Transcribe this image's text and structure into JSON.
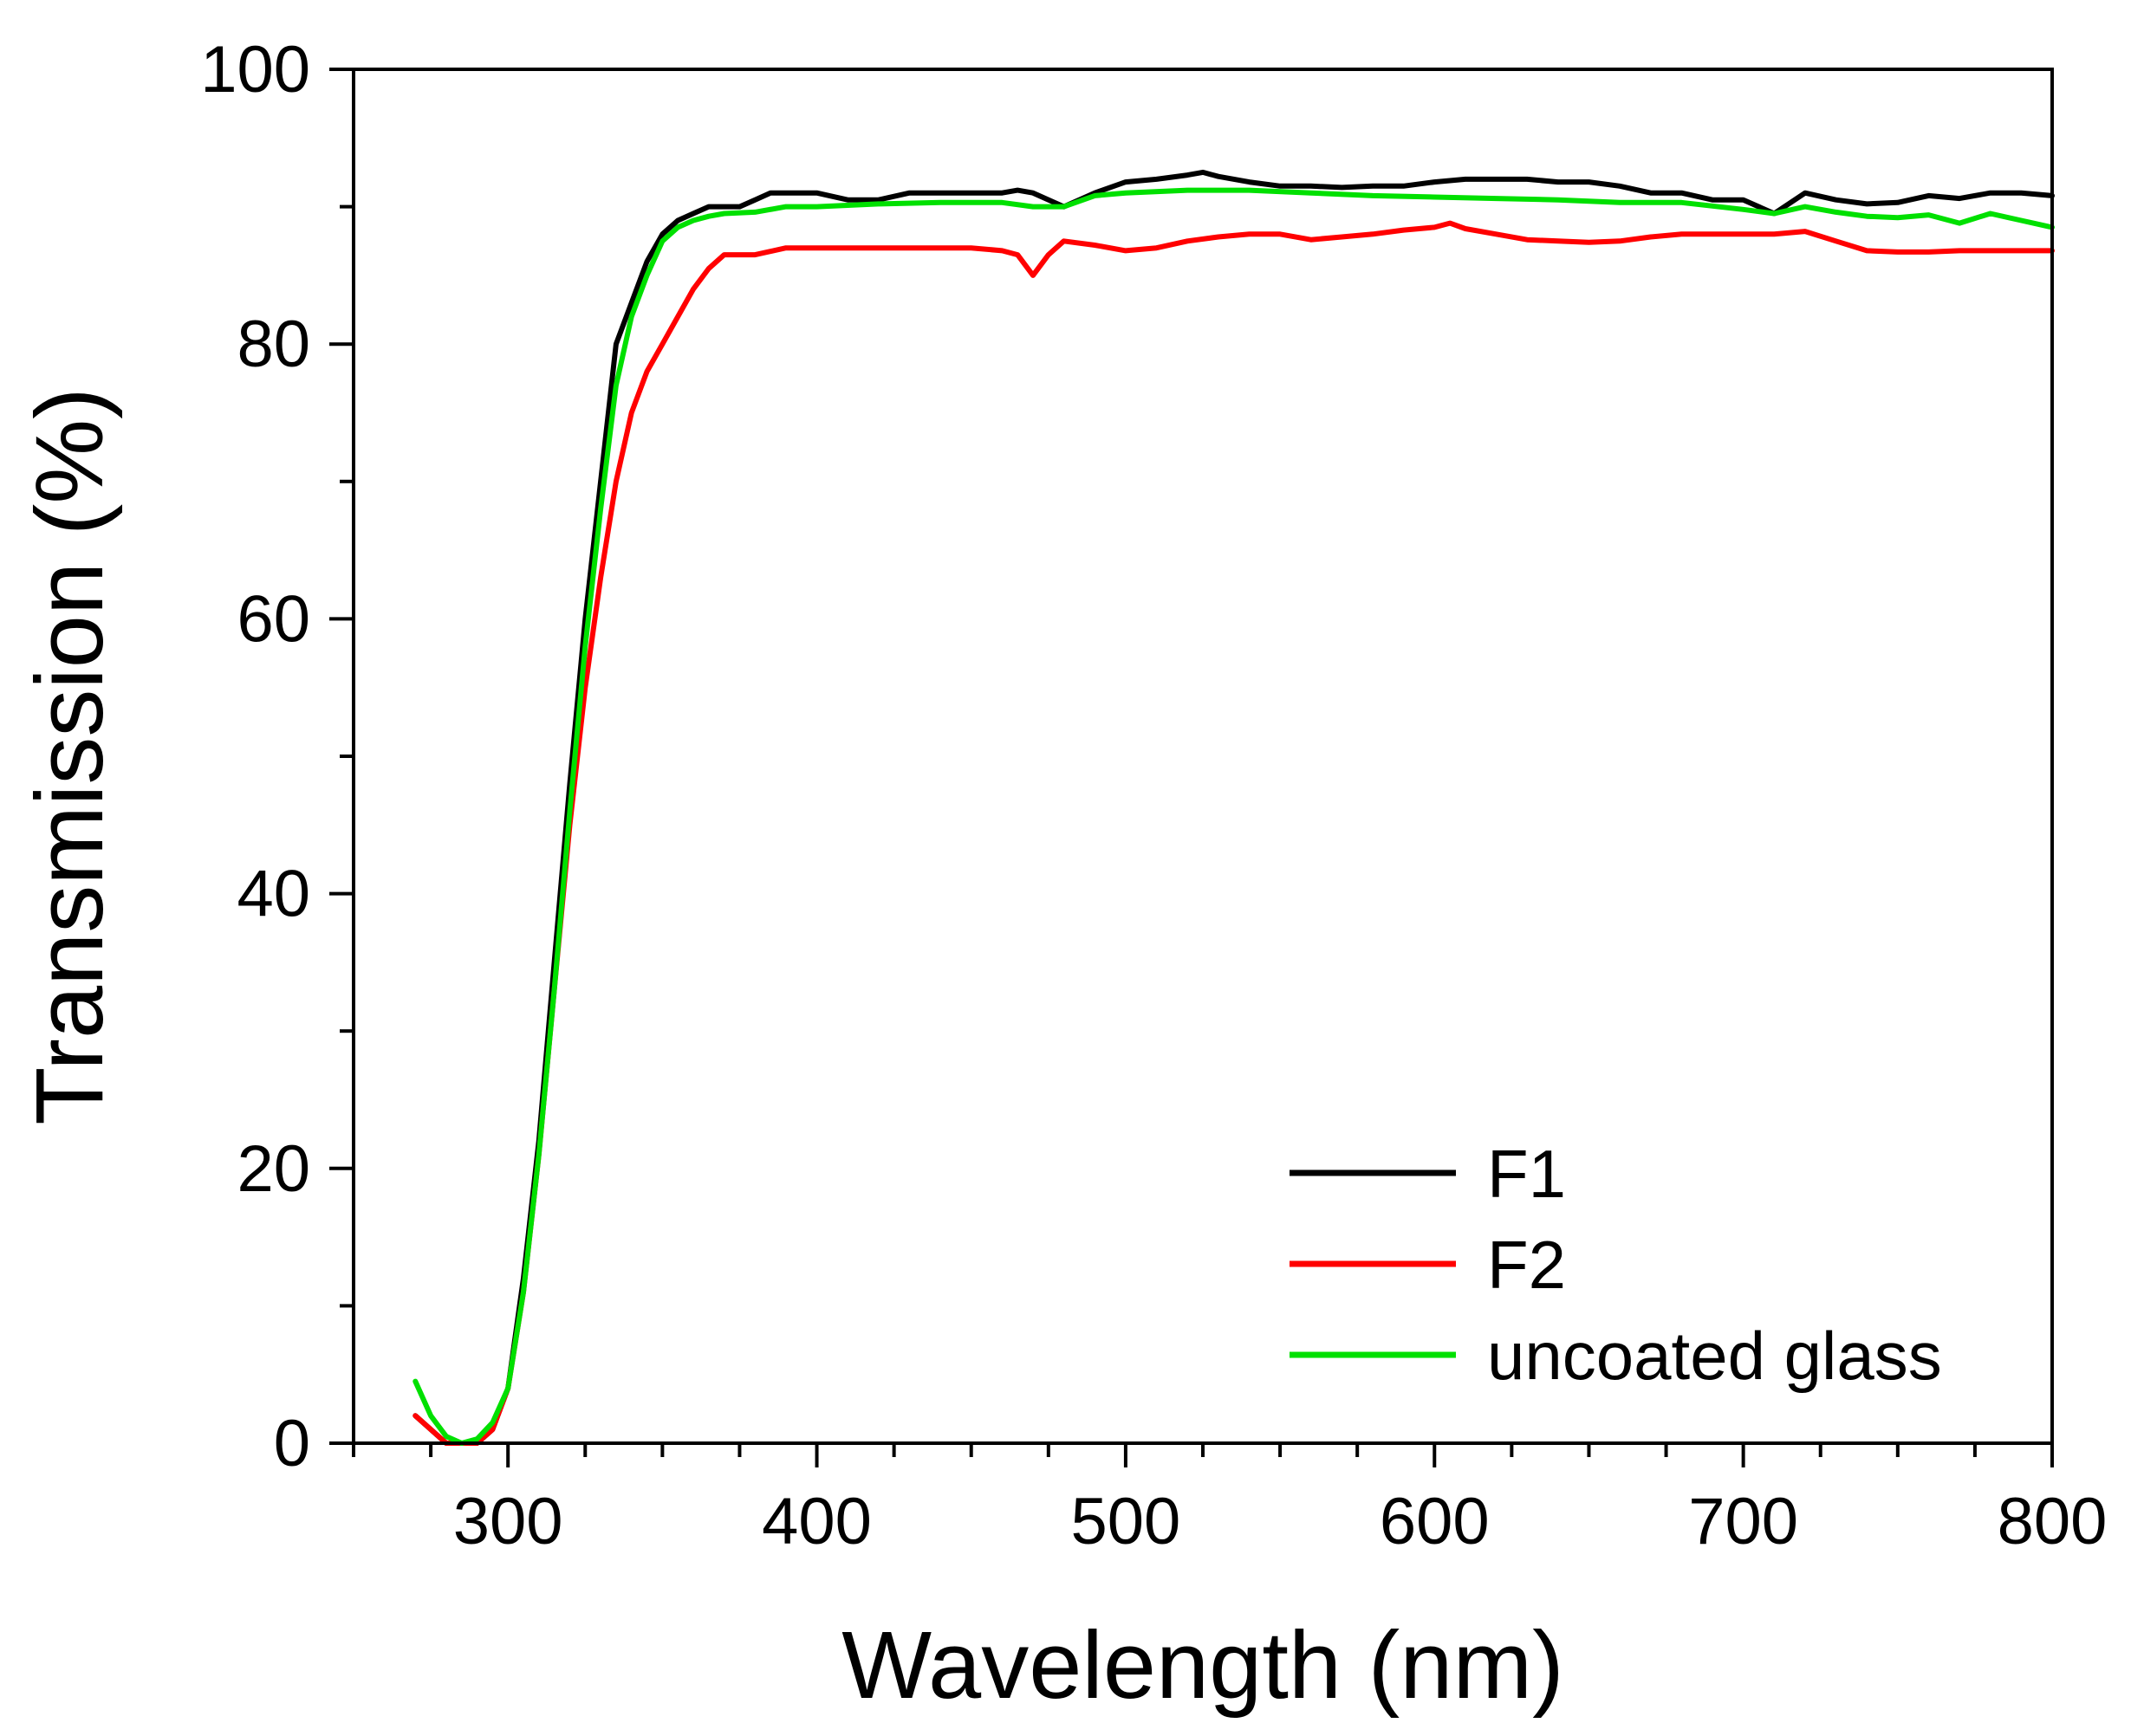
{
  "chart_data": {
    "type": "line",
    "title": "",
    "xlabel": "Wavelength (nm)",
    "ylabel": "Transmission (%)",
    "xlim": [
      250,
      800
    ],
    "ylim": [
      0,
      100
    ],
    "xticks": [
      300,
      400,
      500,
      600,
      700,
      800
    ],
    "yticks": [
      0,
      20,
      40,
      60,
      80,
      100
    ],
    "grid": false,
    "legend_position": "bottom-right",
    "series": [
      {
        "name": "F1",
        "color": "#000000",
        "x": [
          270,
          275,
          280,
          285,
          290,
          295,
          300,
          305,
          310,
          315,
          320,
          325,
          330,
          335,
          340,
          345,
          350,
          355,
          360,
          365,
          370,
          375,
          380,
          385,
          390,
          400,
          410,
          420,
          430,
          440,
          450,
          460,
          465,
          470,
          480,
          490,
          500,
          510,
          520,
          525,
          530,
          540,
          550,
          560,
          570,
          580,
          590,
          600,
          610,
          620,
          630,
          640,
          650,
          660,
          670,
          680,
          690,
          700,
          710,
          720,
          730,
          740,
          750,
          760,
          770,
          780,
          790,
          800
        ],
        "y": [
          2,
          1,
          0,
          0,
          0,
          1,
          4,
          12,
          22,
          35,
          48,
          60,
          70,
          80,
          83,
          86,
          88,
          89,
          89.5,
          90,
          90,
          90,
          90.5,
          91,
          91,
          91,
          90.5,
          90.5,
          91,
          91,
          91,
          91,
          91.2,
          91,
          90,
          91,
          91.8,
          92,
          92.3,
          92.5,
          92.2,
          91.8,
          91.5,
          91.5,
          91.4,
          91.5,
          91.5,
          91.8,
          92,
          92,
          92,
          91.8,
          91.8,
          91.5,
          91,
          91,
          90.5,
          90.5,
          89.5,
          91,
          90.5,
          90.2,
          90.3,
          90.8,
          90.6,
          91,
          91,
          90.8
        ]
      },
      {
        "name": "F2",
        "color": "#ff0000",
        "x": [
          270,
          275,
          280,
          285,
          290,
          295,
          300,
          305,
          310,
          315,
          320,
          325,
          330,
          335,
          340,
          345,
          350,
          355,
          360,
          365,
          370,
          380,
          390,
          400,
          410,
          420,
          430,
          440,
          450,
          460,
          465,
          470,
          475,
          480,
          490,
          500,
          510,
          520,
          530,
          540,
          550,
          560,
          570,
          580,
          590,
          600,
          605,
          610,
          620,
          630,
          640,
          650,
          660,
          670,
          680,
          690,
          700,
          710,
          720,
          730,
          740,
          750,
          760,
          770,
          780,
          790,
          800
        ],
        "y": [
          2,
          1,
          0,
          0,
          0,
          1,
          4,
          11,
          21,
          33,
          45,
          55,
          63,
          70,
          75,
          78,
          80,
          82,
          84,
          85.5,
          86.5,
          86.5,
          87,
          87,
          87,
          87,
          87,
          87,
          87,
          86.8,
          86.5,
          85,
          86.5,
          87.5,
          87.2,
          86.8,
          87,
          87.5,
          87.8,
          88,
          88,
          87.6,
          87.8,
          88,
          88.3,
          88.5,
          88.8,
          88.4,
          88,
          87.6,
          87.5,
          87.4,
          87.5,
          87.8,
          88,
          88,
          88,
          88,
          88.2,
          87.5,
          86.8,
          86.7,
          86.7,
          86.8,
          86.8,
          86.8,
          86.8
        ]
      },
      {
        "name": "uncoated glass",
        "color": "#00e000",
        "x": [
          270,
          275,
          280,
          285,
          290,
          295,
          300,
          305,
          310,
          315,
          320,
          325,
          330,
          335,
          340,
          345,
          350,
          355,
          360,
          365,
          370,
          380,
          390,
          400,
          420,
          440,
          460,
          470,
          480,
          490,
          500,
          520,
          540,
          560,
          580,
          600,
          620,
          640,
          660,
          680,
          700,
          710,
          720,
          730,
          740,
          750,
          760,
          770,
          780,
          790,
          800
        ],
        "y": [
          4.5,
          2,
          0.5,
          0,
          0.3,
          1.5,
          4,
          11,
          21,
          33,
          46,
          58,
          68,
          77,
          82,
          85,
          87.5,
          88.5,
          89,
          89.3,
          89.5,
          89.6,
          90,
          90,
          90.2,
          90.3,
          90.3,
          90,
          90,
          90.8,
          91,
          91.2,
          91.2,
          91,
          90.8,
          90.7,
          90.6,
          90.5,
          90.3,
          90.3,
          89.8,
          89.5,
          90,
          89.6,
          89.3,
          89.2,
          89.4,
          88.8,
          89.5,
          89,
          88.5
        ]
      }
    ]
  }
}
